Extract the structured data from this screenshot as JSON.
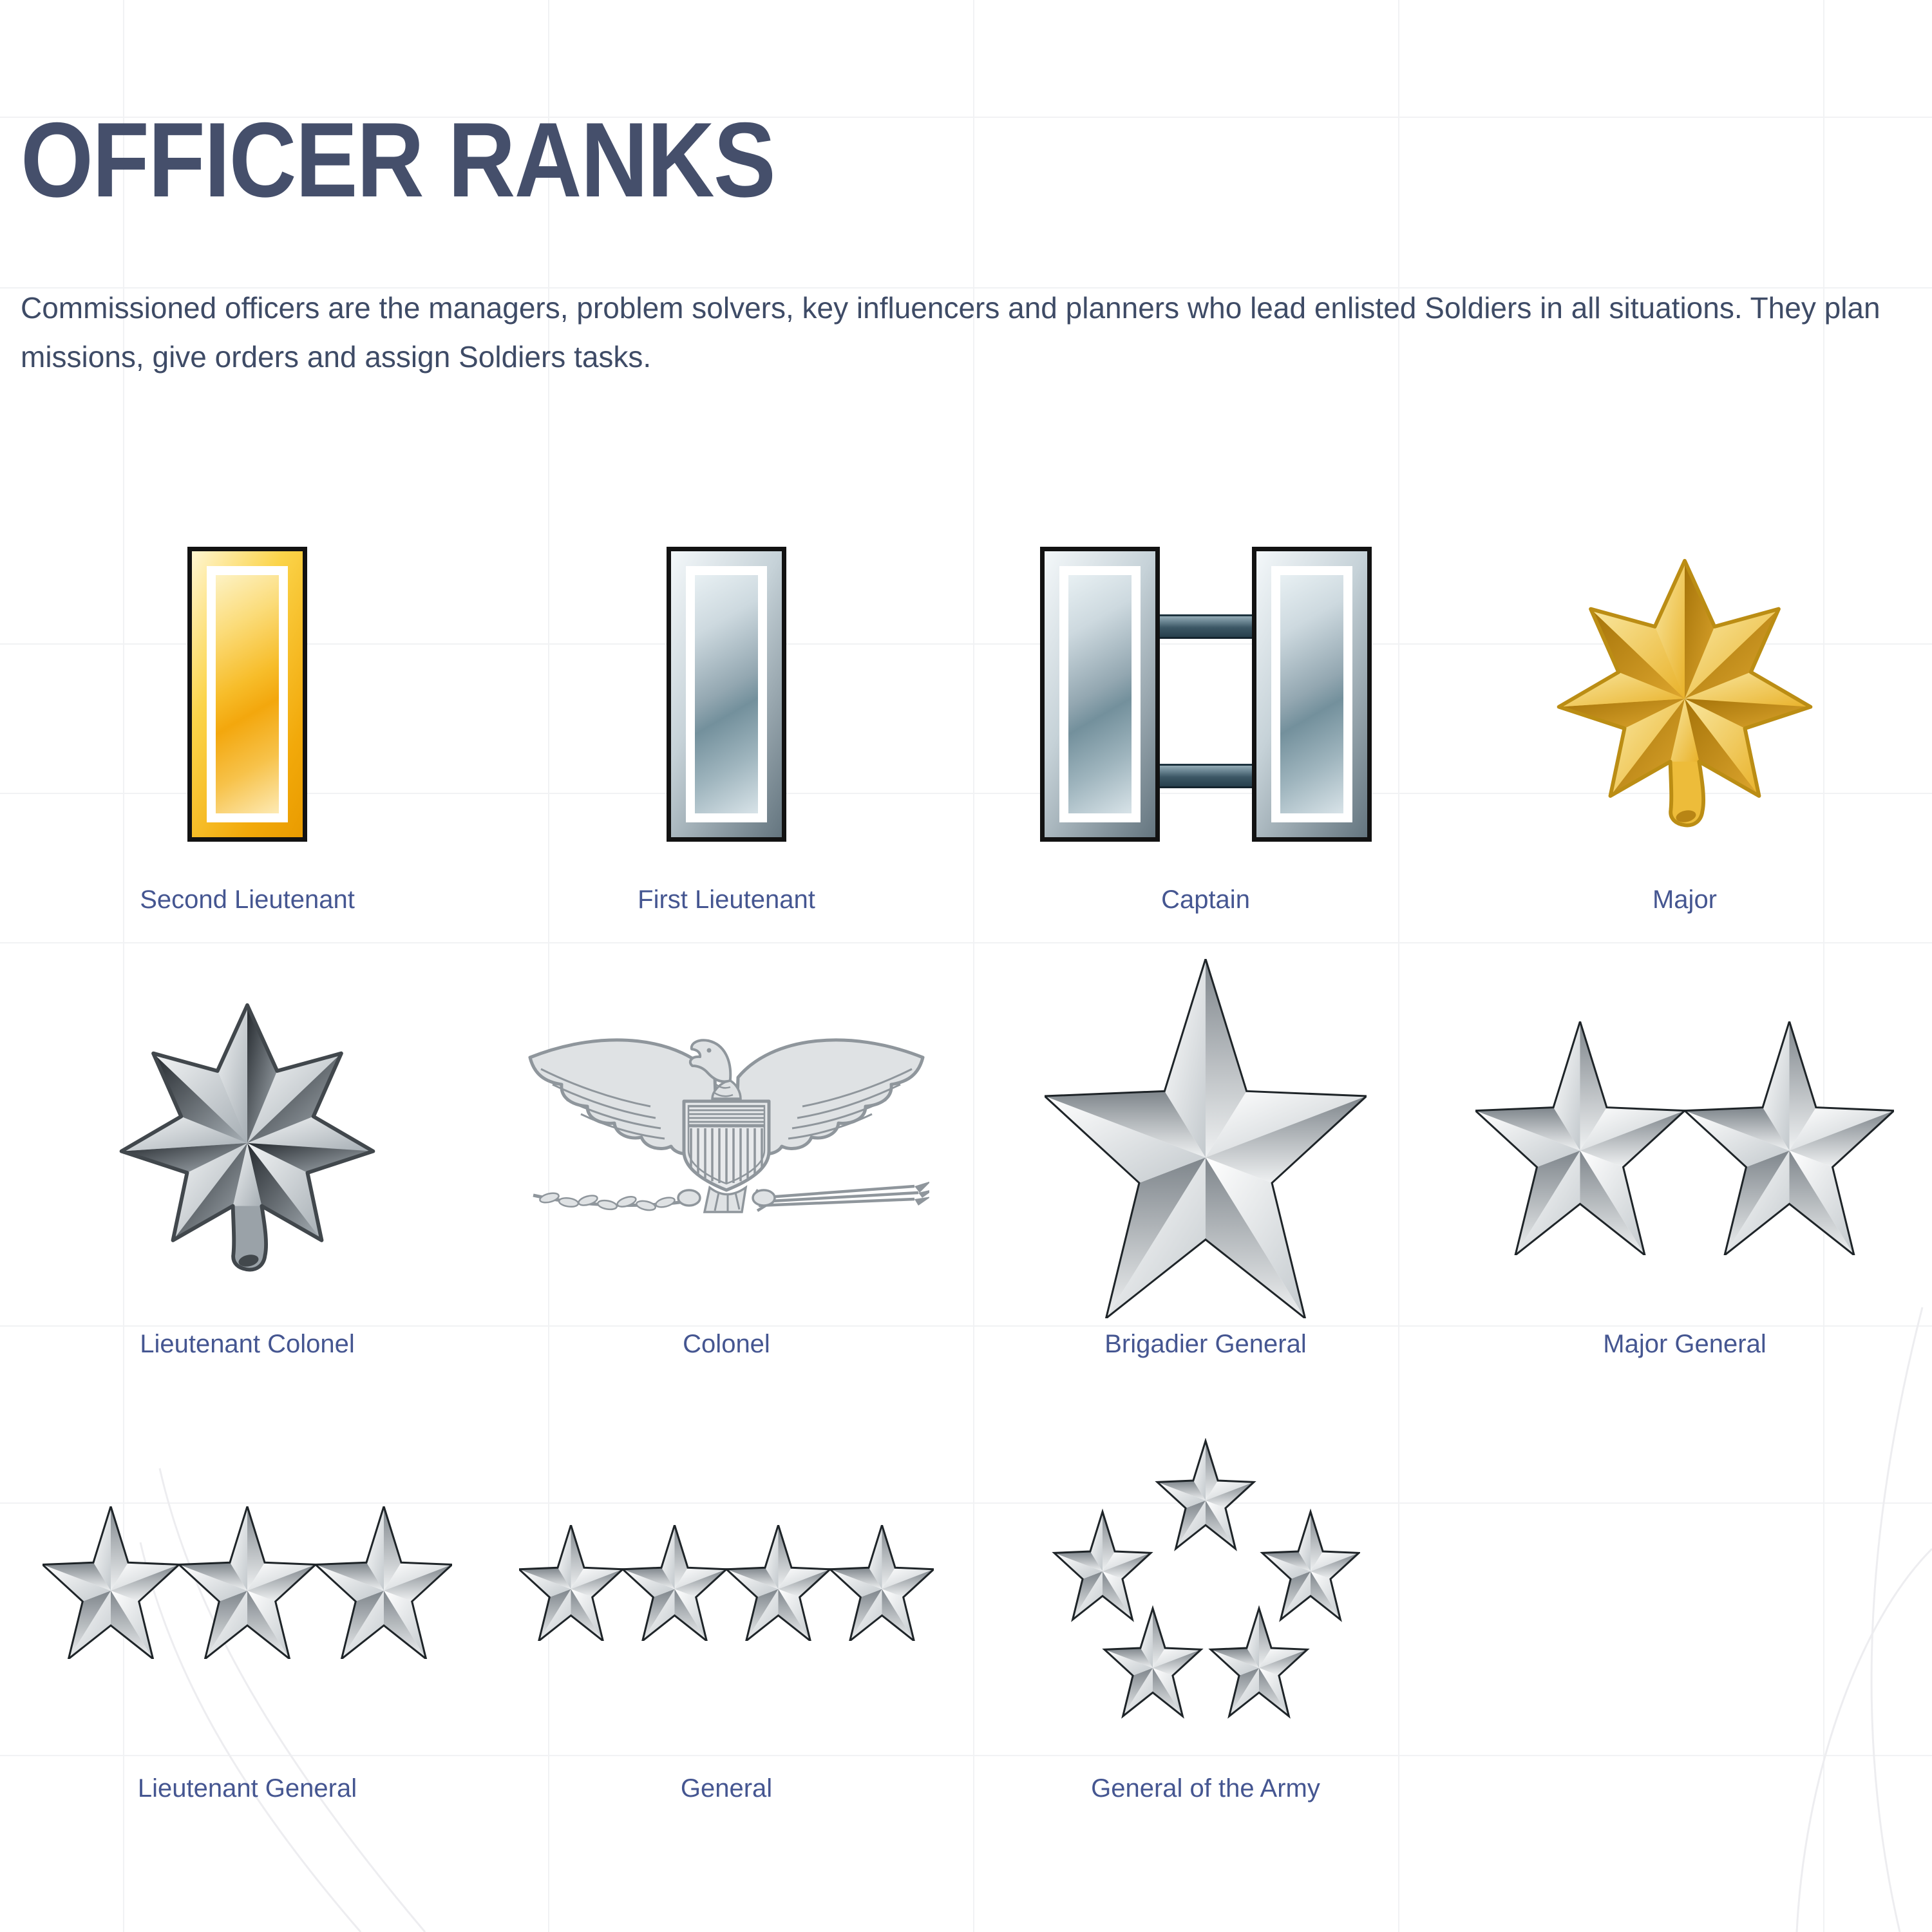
{
  "page": {
    "title": "OFFICER RANKS",
    "description": "Commissioned officers are the managers, problem solvers, key influencers and planners who lead enlisted Soldiers in all situations. They plan missions, give orders and assign Soldiers tasks."
  },
  "colors": {
    "title_text": "#454f6b",
    "body_text": "#3e4b66",
    "label_text": "#455691",
    "background": "#ffffff",
    "grid_line": "#f1f2f4",
    "accent_gold": "#f5b81f",
    "accent_silver": "#9fb2bc",
    "insignia_outline": "#1e2428"
  },
  "ranks": [
    {
      "name": "Second Lieutenant",
      "insignia": "gold-bar"
    },
    {
      "name": "First Lieutenant",
      "insignia": "silver-bar"
    },
    {
      "name": "Captain",
      "insignia": "double-silver-bar"
    },
    {
      "name": "Major",
      "insignia": "gold-oak-leaf"
    },
    {
      "name": "Lieutenant Colonel",
      "insignia": "silver-oak-leaf"
    },
    {
      "name": "Colonel",
      "insignia": "eagle"
    },
    {
      "name": "Brigadier General",
      "insignia": "star-1"
    },
    {
      "name": "Major General",
      "insignia": "star-2"
    },
    {
      "name": "Lieutenant General",
      "insignia": "star-3"
    },
    {
      "name": "General",
      "insignia": "star-4"
    },
    {
      "name": "General of the Army",
      "insignia": "star-5-pentagon"
    }
  ]
}
